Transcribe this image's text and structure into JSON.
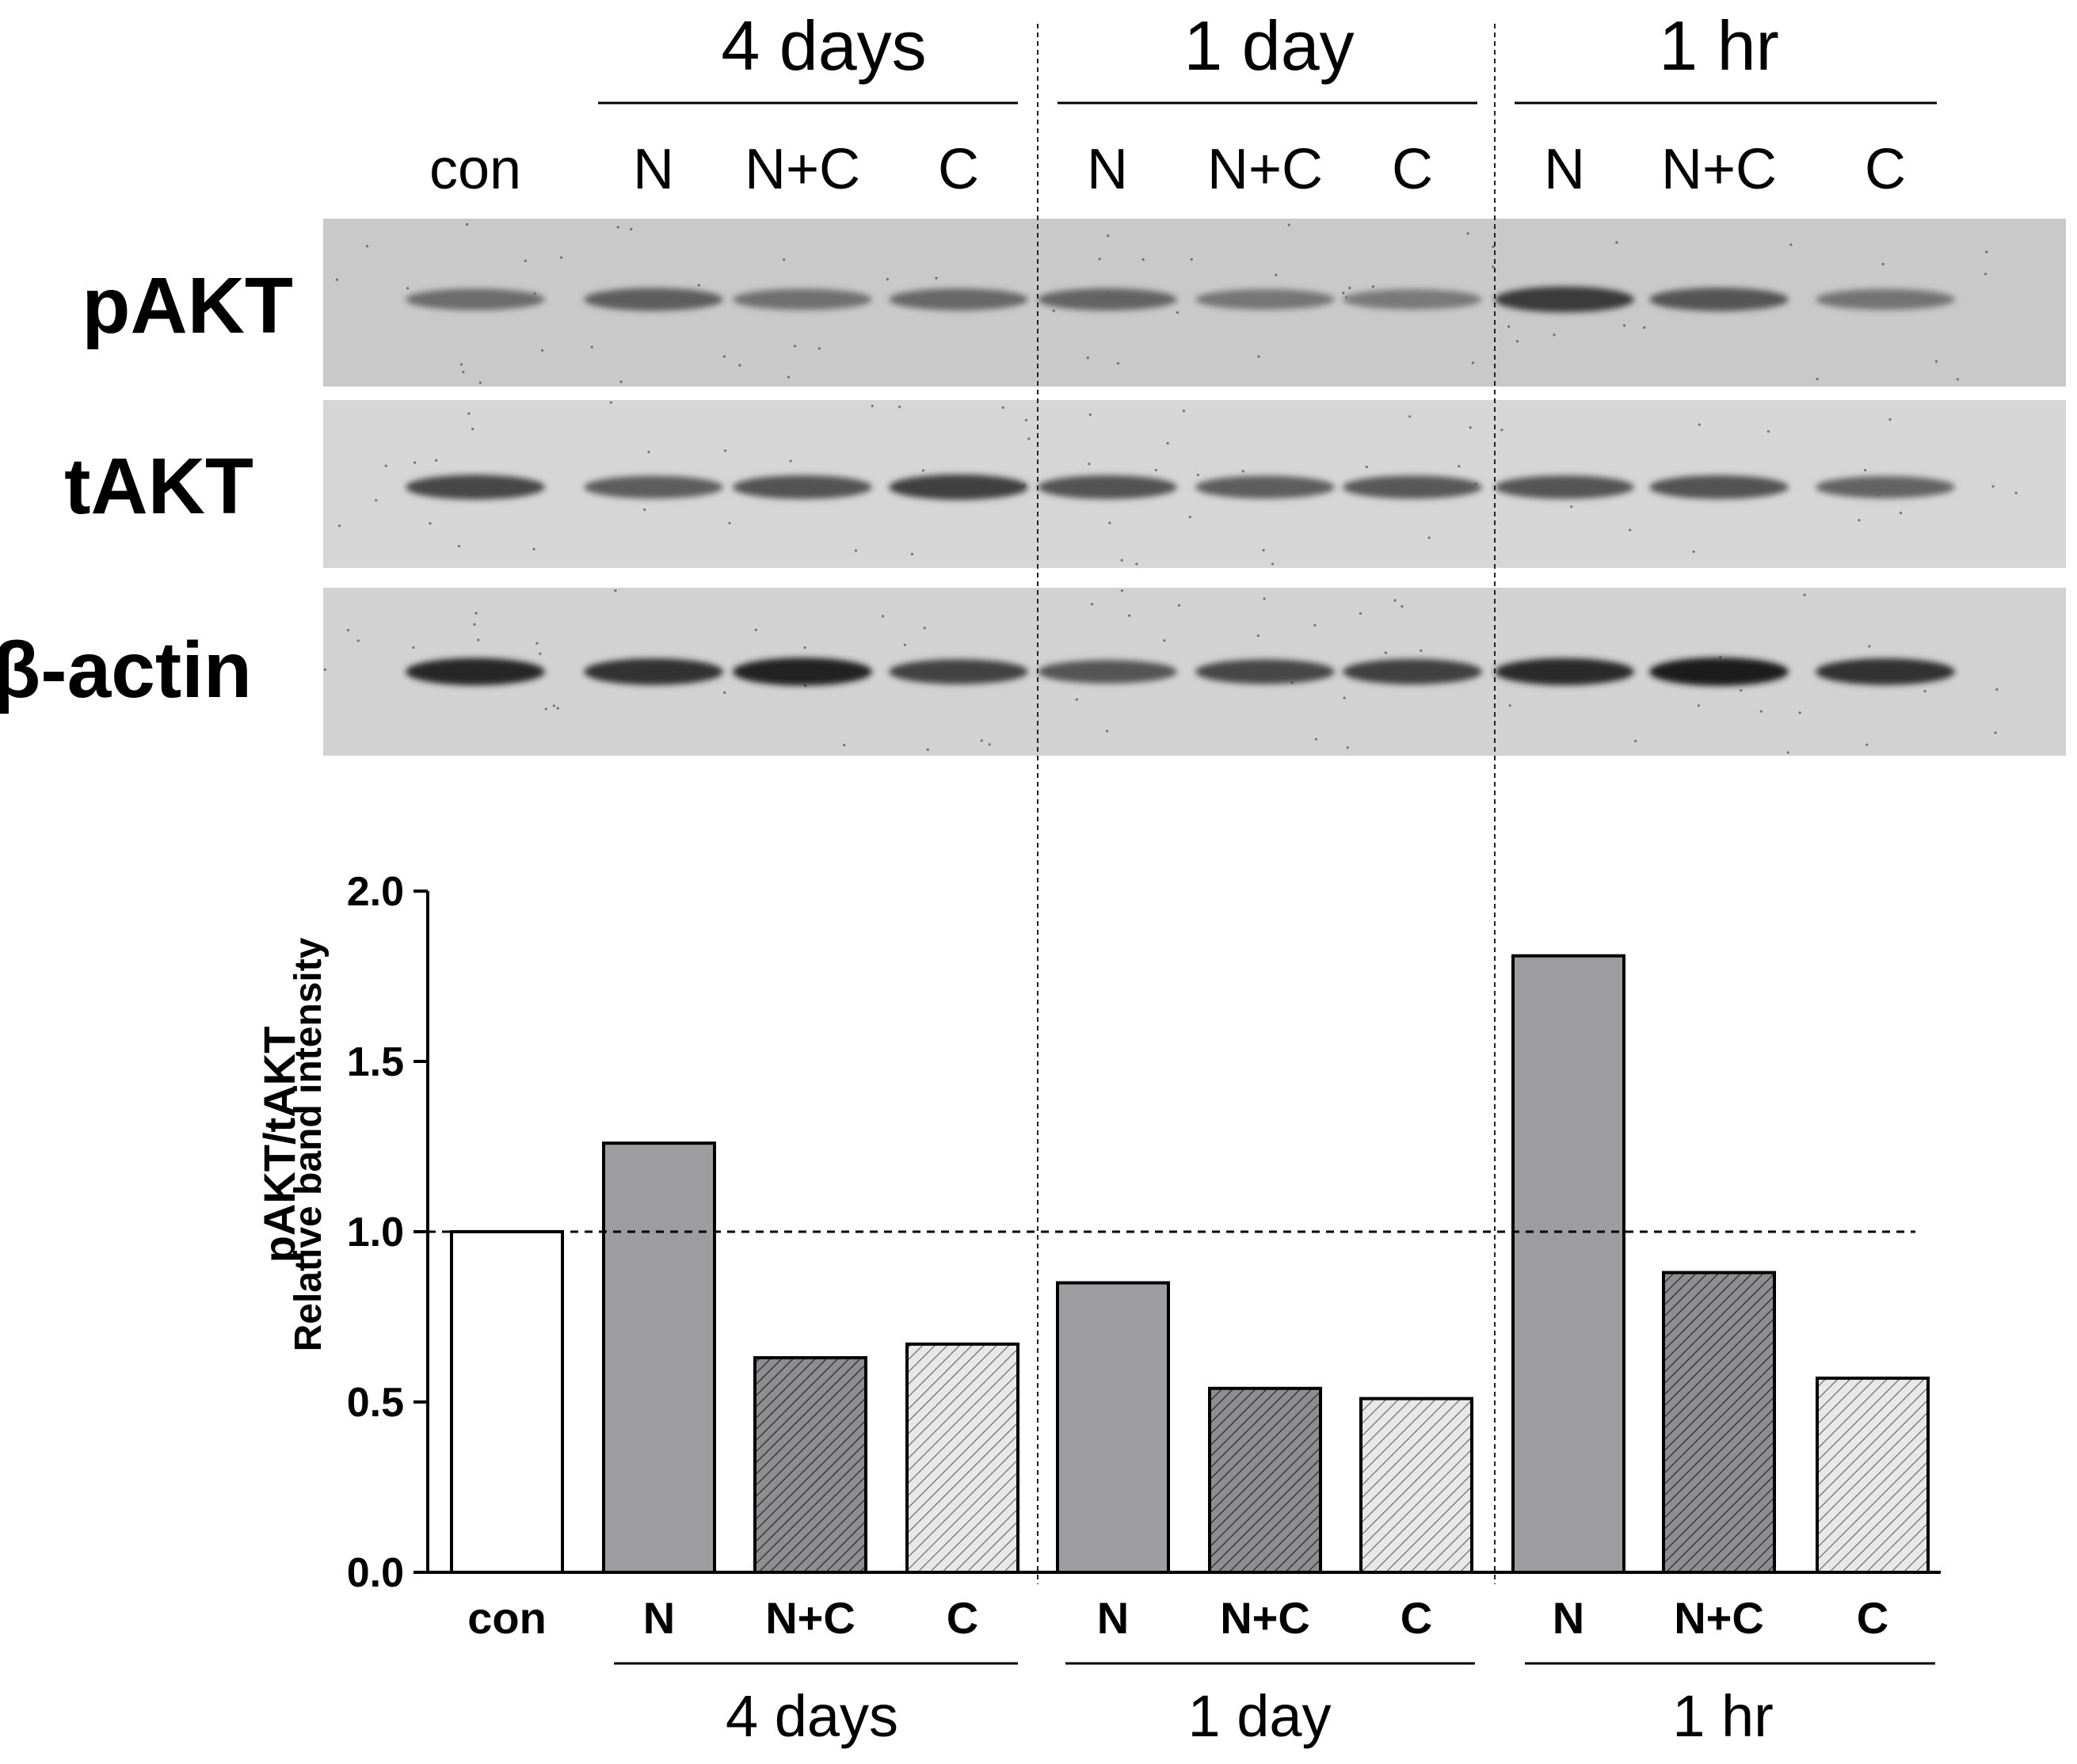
{
  "figure": {
    "lane_labels": [
      "con",
      "N",
      "N+C",
      "C",
      "N",
      "N+C",
      "C",
      "N",
      "N+C",
      "C"
    ],
    "time_groups": [
      "4 days",
      "1 day",
      "1 hr"
    ],
    "blots": [
      {
        "label": "pAKT",
        "band_intensity": [
          0.45,
          0.55,
          0.42,
          0.48,
          0.5,
          0.38,
          0.36,
          0.78,
          0.6,
          0.4
        ]
      },
      {
        "label": "tAKT",
        "band_intensity": [
          0.7,
          0.55,
          0.62,
          0.75,
          0.62,
          0.55,
          0.58,
          0.6,
          0.62,
          0.5
        ]
      },
      {
        "label": "β-actin",
        "band_intensity": [
          0.9,
          0.85,
          0.95,
          0.72,
          0.6,
          0.7,
          0.75,
          0.88,
          0.98,
          0.85
        ]
      }
    ]
  },
  "chart_data": {
    "type": "bar",
    "categories": [
      "con",
      "N",
      "N+C",
      "C",
      "N",
      "N+C",
      "C",
      "N",
      "N+C",
      "C"
    ],
    "groups": [
      {
        "label": "4 days",
        "categories": [
          "N",
          "N+C",
          "C"
        ]
      },
      {
        "label": "1 day",
        "categories": [
          "N",
          "N+C",
          "C"
        ]
      },
      {
        "label": "1 hr",
        "categories": [
          "N",
          "N+C",
          "C"
        ]
      }
    ],
    "values": [
      1.0,
      1.26,
      0.63,
      0.67,
      0.85,
      0.54,
      0.51,
      1.81,
      0.88,
      0.57
    ],
    "fills": [
      "white",
      "gray",
      "dense-hatch",
      "light-hatch",
      "gray",
      "dense-hatch",
      "light-hatch",
      "gray",
      "dense-hatch",
      "light-hatch"
    ],
    "colors": {
      "gray": "#9d9d9f",
      "dense_hatch_bg": "#8e8e90",
      "light_hatch_bg": "#e6e6e6",
      "white": "#ffffff"
    },
    "ylabel": "pAKT/tAKT",
    "ylabel_sub": "Relative band intensity",
    "ylim": [
      0,
      2.0
    ],
    "yticks": [
      "0.0",
      "0.5",
      "1.0",
      "1.5",
      "2.0"
    ],
    "reference_line": 1.0,
    "grid": false
  }
}
